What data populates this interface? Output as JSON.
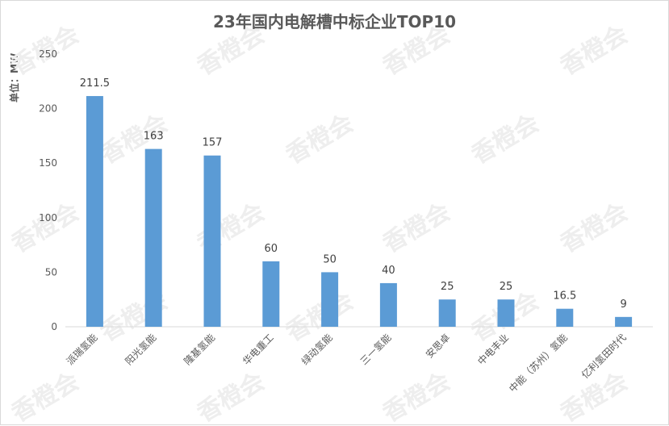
{
  "chart_data": {
    "type": "bar",
    "title": "23年国内电解槽中标企业TOP10",
    "ylabel": "单位：MW",
    "xlabel": "",
    "categories": [
      "派瑞氢能",
      "阳光氢能",
      "隆基氢能",
      "华电重工",
      "绿动氢能",
      "三一氢能",
      "安思卓",
      "中电丰业",
      "中能（苏州）氢能",
      "亿利氢田时代"
    ],
    "values": [
      211.5,
      163,
      157,
      60,
      50,
      40,
      25,
      25,
      16.5,
      9
    ],
    "value_labels": [
      "211.5",
      "163",
      "157",
      "60",
      "50",
      "40",
      "25",
      "25",
      "16.5",
      "9"
    ],
    "ylim": [
      0,
      250
    ],
    "yticks": [
      0,
      50,
      100,
      150,
      200,
      250
    ],
    "grid": false,
    "legend": "none",
    "bar_color": "#5b9bd5"
  },
  "watermark": "香橙会"
}
